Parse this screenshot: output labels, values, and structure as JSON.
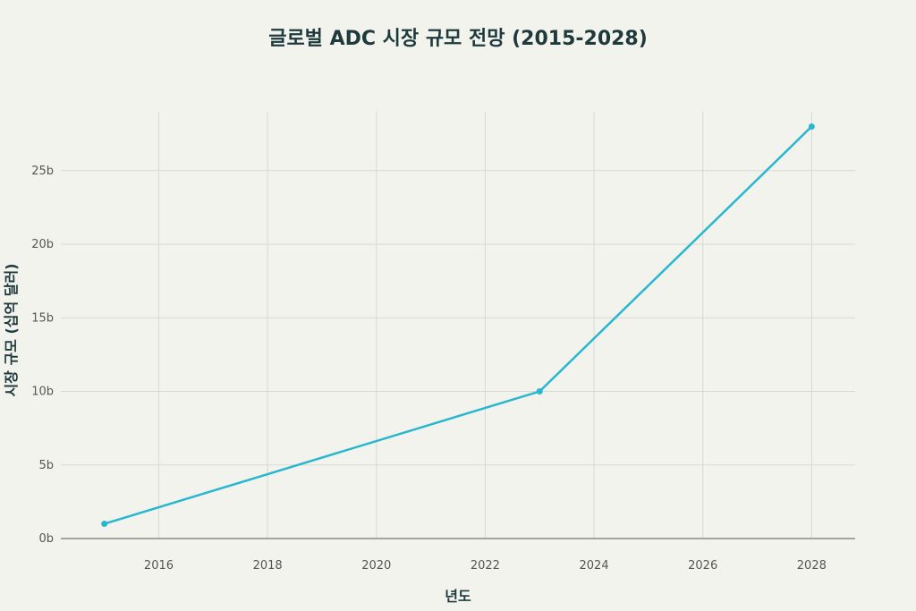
{
  "chart_data": {
    "type": "line",
    "title": "글로벌 ADC 시장 규모 전망 (2015-2028)",
    "xlabel": "년도",
    "ylabel": "시장 규모 (십억 달러)",
    "xlim": [
      2014.2,
      2028.8
    ],
    "ylim": [
      0,
      29
    ],
    "x_ticks": [
      2016,
      2018,
      2020,
      2022,
      2024,
      2026,
      2028
    ],
    "y_ticks": [
      0,
      5,
      10,
      15,
      20,
      25
    ],
    "y_tick_labels": [
      "0b",
      "5b",
      "10b",
      "15b",
      "20b",
      "25b"
    ],
    "grid": true,
    "series": [
      {
        "x": [
          2015,
          2023,
          2028
        ],
        "values": [
          1,
          10,
          28
        ],
        "color": "#29b6cf"
      }
    ]
  }
}
